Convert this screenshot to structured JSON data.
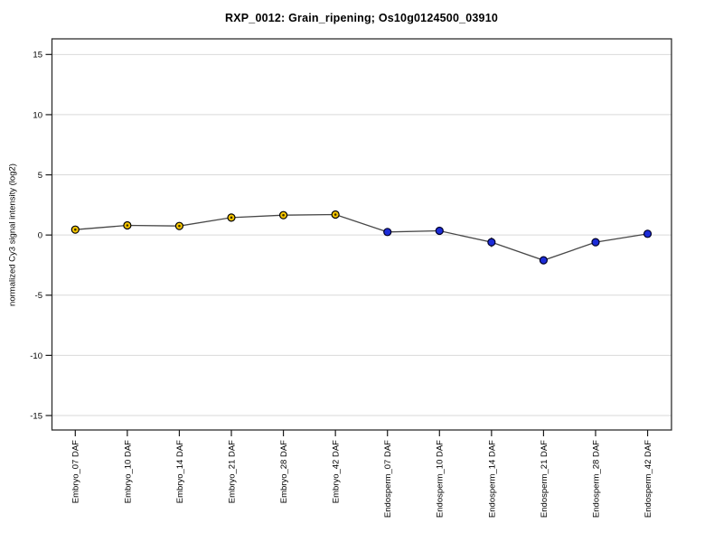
{
  "title": "RXP_0012: Grain_ripening; Os10g0124500_03910",
  "chart_data": {
    "type": "line",
    "title": "RXP_0012: Grain_ripening; Os10g0124500_03910",
    "xlabel": "",
    "ylabel": "normalized Cy3 signal intensity (log2)",
    "ylim": [
      -16.2,
      16.3
    ],
    "yticks": [
      15,
      10,
      5,
      0,
      -5,
      -10,
      -15
    ],
    "grid": true,
    "legend_position": "none",
    "categories": [
      "Embryo_07 DAF",
      "Embryo_10 DAF",
      "Embryo_14 DAF",
      "Embryo_21 DAF",
      "Embryo_28 DAF",
      "Embryo_42 DAF",
      "Endosperm_07 DAF",
      "Endosperm_10 DAF",
      "Endosperm_14 DAF",
      "Endosperm_21 DAF",
      "Endosperm_28 DAF",
      "Endosperm_42 DAF"
    ],
    "points": [
      {
        "label": "Embryo_07 DAF",
        "value": 0.45,
        "err": 0,
        "group": "embryo"
      },
      {
        "label": "Embryo_10 DAF",
        "value": 0.8,
        "err": 0,
        "group": "embryo"
      },
      {
        "label": "Embryo_14 DAF",
        "value": 0.75,
        "err": 0,
        "group": "embryo"
      },
      {
        "label": "Embryo_21 DAF",
        "value": 1.45,
        "err": 0,
        "group": "embryo"
      },
      {
        "label": "Embryo_28 DAF",
        "value": 1.65,
        "err": 0,
        "group": "embryo"
      },
      {
        "label": "Embryo_42 DAF",
        "value": 1.7,
        "err": 0,
        "group": "embryo"
      },
      {
        "label": "Endosperm_07 DAF",
        "value": 0.25,
        "err": 0,
        "group": "endosperm"
      },
      {
        "label": "Endosperm_10 DAF",
        "value": 0.35,
        "err": 0,
        "group": "endosperm"
      },
      {
        "label": "Endosperm_14 DAF",
        "value": -0.6,
        "err": 0.4,
        "group": "endosperm"
      },
      {
        "label": "Endosperm_21 DAF",
        "value": -2.1,
        "err": 0,
        "group": "endosperm"
      },
      {
        "label": "Endosperm_28 DAF",
        "value": -0.6,
        "err": 0.3,
        "group": "endosperm"
      },
      {
        "label": "Endosperm_42 DAF",
        "value": 0.1,
        "err": 0,
        "group": "endosperm"
      }
    ],
    "groups": {
      "embryo": {
        "name": "Embryo",
        "marker_fill": "#f6c600",
        "marker_stroke": "#000000",
        "center_dot": "#3d2f00"
      },
      "endosperm": {
        "name": "Endosperm",
        "marker_fill": "#1c2cd8",
        "marker_stroke": "#000028"
      }
    },
    "colors": {
      "grid": "#d9d9d9",
      "frame": "#2e2e2e",
      "line": "#474747",
      "error_bar": "#1a1a1a",
      "background": "#ffffff"
    }
  }
}
